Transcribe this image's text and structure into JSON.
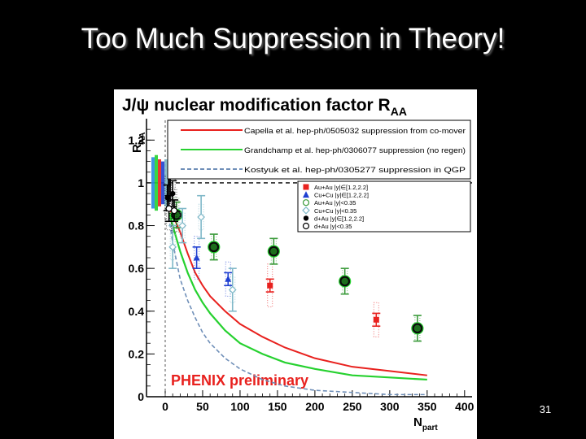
{
  "slide": {
    "title": "Too Much Suppression in Theory!",
    "page_number": "31"
  },
  "chart_data": {
    "type": "scatter",
    "title": "J/ψ nuclear modification factor R",
    "title_subscript": "AA",
    "xlabel": "N",
    "xlabel_subscript": "part",
    "ylabel": "R",
    "ylabel_subscript": "AA",
    "xlim": [
      -25,
      410
    ],
    "ylim": [
      0,
      1.3
    ],
    "x_ticks": [
      0,
      50,
      100,
      150,
      200,
      250,
      300,
      350,
      400
    ],
    "x_tick_labels": [
      "0",
      "50",
      "100",
      "150",
      "200",
      "250",
      "300",
      "350",
      "400"
    ],
    "y_ticks": [
      0,
      0.2,
      0.4,
      0.6,
      0.8,
      1,
      1.2
    ],
    "y_tick_labels": [
      "0",
      "0.2",
      "0.4",
      "0.6",
      "0.8",
      "1",
      "1.2"
    ],
    "reference_line": 1,
    "annotation": "PHENIX preliminary",
    "annotation_color": "#e8211e",
    "theory_legend": [
      {
        "label": "Capella et al. hep-ph/0505032 suppression from co-mover",
        "color": "#e8211e",
        "style": "solid"
      },
      {
        "label": "Grandchamp et al. hep-ph/0306077 suppression (no regen)",
        "color": "#26d12f",
        "style": "solid"
      },
      {
        "label": "Kostyuk et al. hep-ph/0305277 suppression in QGP",
        "color": "#6f8fb8",
        "style": "dashed"
      }
    ],
    "data_legend": [
      {
        "label": "Au+Au |y|∈[1.2,2.2]",
        "marker": "square",
        "color": "#e8211e"
      },
      {
        "label": "Cu+Cu |y|∈[1.2,2.2]",
        "marker": "triangle",
        "color": "#1f3fd1"
      },
      {
        "label": "Au+Au |y|<0.35",
        "marker": "open-circle",
        "color": "#3a9a3a"
      },
      {
        "label": "Cu+Cu |y|<0.35",
        "marker": "open-diamond",
        "color": "#7fb8c8"
      },
      {
        "label": "d+Au |y|∈[1.2,2.2]",
        "marker": "circle",
        "color": "#000000"
      },
      {
        "label": "d+Au |y|<0.35",
        "marker": "open-circle",
        "color": "#000000"
      }
    ],
    "theory_curves": [
      {
        "name": "Capella et al.",
        "color": "#e8211e",
        "x": [
          5,
          10,
          20,
          30,
          40,
          50,
          60,
          80,
          100,
          130,
          160,
          200,
          250,
          300,
          350
        ],
        "y": [
          0.88,
          0.85,
          0.77,
          0.67,
          0.58,
          0.52,
          0.47,
          0.4,
          0.34,
          0.28,
          0.23,
          0.18,
          0.14,
          0.12,
          0.1
        ]
      },
      {
        "name": "Grandchamp et al.",
        "color": "#26d12f",
        "x": [
          5,
          10,
          20,
          30,
          40,
          50,
          60,
          80,
          100,
          130,
          160,
          200,
          250,
          300,
          350
        ],
        "y": [
          0.86,
          0.8,
          0.68,
          0.58,
          0.5,
          0.44,
          0.39,
          0.31,
          0.25,
          0.2,
          0.16,
          0.13,
          0.1,
          0.09,
          0.08
        ]
      },
      {
        "name": "Kostyuk et al.",
        "color": "#6f8fb8",
        "x": [
          5,
          10,
          20,
          30,
          40,
          50,
          60,
          80,
          100,
          130,
          160,
          200,
          250,
          300,
          350
        ],
        "y": [
          0.84,
          0.72,
          0.55,
          0.45,
          0.37,
          0.3,
          0.25,
          0.18,
          0.13,
          0.08,
          0.05,
          0.03,
          0.02,
          0.01,
          0.01
        ]
      }
    ],
    "series": [
      {
        "name": "Au+Au |y|∈[1.2,2.2]",
        "marker": "square",
        "color": "#e8211e",
        "points": [
          {
            "x": 140,
            "y": 0.52,
            "err": 0.03,
            "sys": 0.1
          },
          {
            "x": 282,
            "y": 0.36,
            "err": 0.03,
            "sys": 0.08
          }
        ]
      },
      {
        "name": "Cu+Cu |y|∈[1.2,2.2]",
        "marker": "triangle",
        "color": "#1f3fd1",
        "points": [
          {
            "x": 42,
            "y": 0.65,
            "err": 0.05,
            "sys": 0.1
          },
          {
            "x": 84,
            "y": 0.55,
            "err": 0.03,
            "sys": 0.08
          }
        ]
      },
      {
        "name": "Au+Au |y|<0.35",
        "marker": "open-circle",
        "color": "#3a9a3a",
        "points": [
          {
            "x": 15,
            "y": 0.85,
            "err": 0.06,
            "sys": 0.08
          },
          {
            "x": 65,
            "y": 0.7,
            "err": 0.06,
            "sys": 0.06
          },
          {
            "x": 145,
            "y": 0.68,
            "err": 0.06,
            "sys": 0.06
          },
          {
            "x": 240,
            "y": 0.54,
            "err": 0.06,
            "sys": 0.06
          },
          {
            "x": 337,
            "y": 0.32,
            "err": 0.06,
            "sys": 0.06
          }
        ]
      },
      {
        "name": "Cu+Cu |y|<0.35",
        "marker": "open-diamond",
        "color": "#7fb8c8",
        "points": [
          {
            "x": 10,
            "y": 0.7,
            "err": 0.1,
            "sys": 0.06
          },
          {
            "x": 23,
            "y": 0.8,
            "err": 0.08,
            "sys": 0.06
          },
          {
            "x": 48,
            "y": 0.84,
            "err": 0.1,
            "sys": 0.06
          },
          {
            "x": 90,
            "y": 0.5,
            "err": 0.1,
            "sys": 0.06
          }
        ]
      },
      {
        "name": "d+Au |y|∈[1.2,2.2]",
        "marker": "circle",
        "color": "#000000",
        "points": [
          {
            "x": 3,
            "y": 0.93,
            "err": 0.06,
            "sys": 0.1
          },
          {
            "x": 10,
            "y": 0.95,
            "err": 0.06,
            "sys": 0.1
          }
        ]
      },
      {
        "name": "d+Au |y|<0.35",
        "marker": "open-circle",
        "color": "#000000",
        "points": [
          {
            "x": 5,
            "y": 0.88,
            "err": 0.06,
            "sys": 0.1
          },
          {
            "x": 12,
            "y": 0.87,
            "err": 0.05,
            "sys": 0.1
          }
        ]
      }
    ],
    "normalization_boxes": [
      {
        "color": "#2a8be0",
        "y_low": 0.88,
        "y_high": 1.12
      },
      {
        "color": "#26d12f",
        "y_low": 0.87,
        "y_high": 1.13
      },
      {
        "color": "#e8211e",
        "y_low": 0.89,
        "y_high": 1.11
      },
      {
        "color": "#1f3fd1",
        "y_low": 0.9,
        "y_high": 1.1
      },
      {
        "color": "#7fb8c8",
        "y_low": 0.89,
        "y_high": 1.11
      },
      {
        "color": "#000000",
        "y_low": 0.91,
        "y_high": 1.09
      }
    ]
  }
}
